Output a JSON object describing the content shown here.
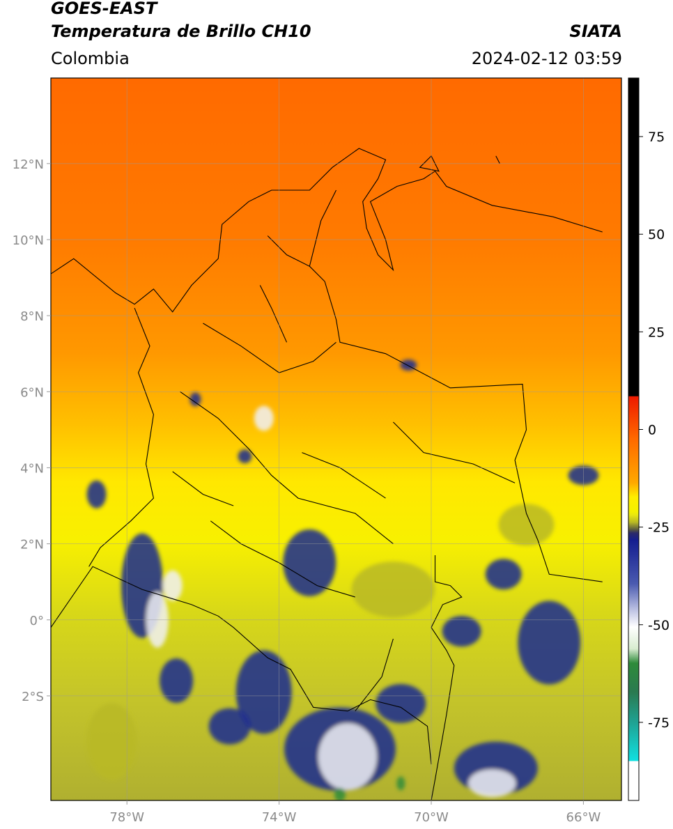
{
  "header": {
    "line1": "GOES-EAST",
    "line2": "Temperatura de Brillo CH10",
    "region": "Colombia",
    "source": "SIATA",
    "datetime": "2024-02-12 03:59"
  },
  "map": {
    "lon_range": [
      -80,
      -65
    ],
    "lat_range": [
      -4.75,
      14.25
    ],
    "lat_ticks": [
      {
        "value": 12,
        "label": "12°N"
      },
      {
        "value": 10,
        "label": "10°N"
      },
      {
        "value": 8,
        "label": "8°N"
      },
      {
        "value": 6,
        "label": "6°N"
      },
      {
        "value": 4,
        "label": "4°N"
      },
      {
        "value": 2,
        "label": "2°N"
      },
      {
        "value": 0,
        "label": "0°"
      },
      {
        "value": -2,
        "label": "2°S"
      }
    ],
    "lon_ticks": [
      {
        "value": -78,
        "label": "78°W"
      },
      {
        "value": -74,
        "label": "74°W"
      },
      {
        "value": -70,
        "label": "70°W"
      },
      {
        "value": -66,
        "label": "66°W"
      }
    ],
    "colors": {
      "warm": "#ff6a00",
      "mid": "#ffa000",
      "yellow": "#fff000",
      "olive": "#b8b825",
      "navy": "#1a2a90",
      "white": "#f0f0f5",
      "green": "#2e8b3a"
    }
  },
  "colorbar": {
    "range": [
      -95,
      90
    ],
    "ticks": [
      {
        "value": 75,
        "label": "75"
      },
      {
        "value": 50,
        "label": "50"
      },
      {
        "value": 25,
        "label": "25"
      },
      {
        "value": 0,
        "label": "0"
      },
      {
        "value": -25,
        "label": "-25"
      },
      {
        "value": -50,
        "label": "-50"
      },
      {
        "value": -75,
        "label": "-75"
      }
    ]
  }
}
